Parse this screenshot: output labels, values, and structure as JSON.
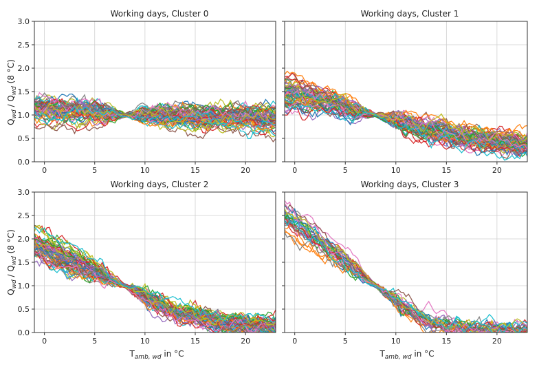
{
  "chart_data": [
    {
      "type": "line",
      "title": "Working days, Cluster 0",
      "xlim": [
        -1,
        23
      ],
      "ylim": [
        0,
        3.0
      ],
      "xticks": [
        "0",
        "5",
        "10",
        "15",
        "20"
      ],
      "yticks": [
        "0.0",
        "0.5",
        "1.0",
        "1.5",
        "2.0",
        "2.5",
        "3.0"
      ],
      "xlabel": "",
      "ylabel": "Q_wd / Q_wd (8 °C)",
      "grid": true,
      "profile": {
        "x": [
          -1,
          3,
          8,
          13,
          18,
          23
        ],
        "mean": [
          1.12,
          1.08,
          1.0,
          0.98,
          0.95,
          0.92
        ],
        "spread": [
          0.25,
          0.22,
          0.05,
          0.2,
          0.22,
          0.25
        ],
        "n_series": 60
      }
    },
    {
      "type": "line",
      "title": "Working days, Cluster 1",
      "xlim": [
        -1,
        23
      ],
      "ylim": [
        0,
        3.0
      ],
      "xticks": [
        "0",
        "5",
        "10",
        "15",
        "20"
      ],
      "yticks": [
        "0.0",
        "0.5",
        "1.0",
        "1.5",
        "2.0",
        "2.5",
        "3.0"
      ],
      "xlabel": "",
      "ylabel": "",
      "grid": true,
      "profile": {
        "x": [
          -1,
          3,
          8,
          13,
          18,
          23
        ],
        "mean": [
          1.45,
          1.3,
          1.0,
          0.7,
          0.48,
          0.38
        ],
        "spread": [
          0.35,
          0.2,
          0.05,
          0.15,
          0.17,
          0.18
        ],
        "n_series": 60
      }
    },
    {
      "type": "line",
      "title": "Working days, Cluster 2",
      "xlim": [
        -1,
        23
      ],
      "ylim": [
        0,
        3.0
      ],
      "xticks": [
        "0",
        "5",
        "10",
        "15",
        "20"
      ],
      "yticks": [
        "0.0",
        "0.5",
        "1.0",
        "1.5",
        "2.0",
        "2.5",
        "3.0"
      ],
      "xlabel": "T_amb, wd in °C",
      "ylabel": "Q_wd / Q_wd (8 °C)",
      "grid": true,
      "profile": {
        "x": [
          -1,
          3,
          8,
          13,
          18,
          23
        ],
        "mean": [
          1.9,
          1.5,
          1.0,
          0.45,
          0.2,
          0.15
        ],
        "spread": [
          0.3,
          0.25,
          0.05,
          0.15,
          0.1,
          0.12
        ],
        "n_series": 60
      }
    },
    {
      "type": "line",
      "title": "Working days, Cluster 3",
      "xlim": [
        -1,
        23
      ],
      "ylim": [
        0,
        3.0
      ],
      "xticks": [
        "0",
        "5",
        "10",
        "15",
        "20"
      ],
      "yticks": [
        "0.0",
        "0.5",
        "1.0",
        "1.5",
        "2.0",
        "2.5",
        "3.0"
      ],
      "xlabel": "T_amb, wd in °C",
      "ylabel": "",
      "grid": true,
      "profile": {
        "x": [
          -1,
          3,
          8,
          13,
          18,
          23
        ],
        "mean": [
          2.5,
          1.9,
          1.0,
          0.25,
          0.08,
          0.06
        ],
        "spread": [
          0.35,
          0.3,
          0.08,
          0.15,
          0.07,
          0.06
        ],
        "n_series": 30
      }
    }
  ],
  "labels": {
    "ylabel_main": "Q",
    "ylabel_sub": "wd",
    "ylabel_sep": " / Q",
    "ylabel_tail": " (8 °C)",
    "xlabel_main": "T",
    "xlabel_sub": "amb, wd",
    "xlabel_tail": " in °C"
  },
  "colors": [
    "#1f77b4",
    "#ff7f0e",
    "#2ca02c",
    "#d62728",
    "#9467bd",
    "#8c564b",
    "#e377c2",
    "#7f7f7f",
    "#bcbd22",
    "#17becf"
  ]
}
